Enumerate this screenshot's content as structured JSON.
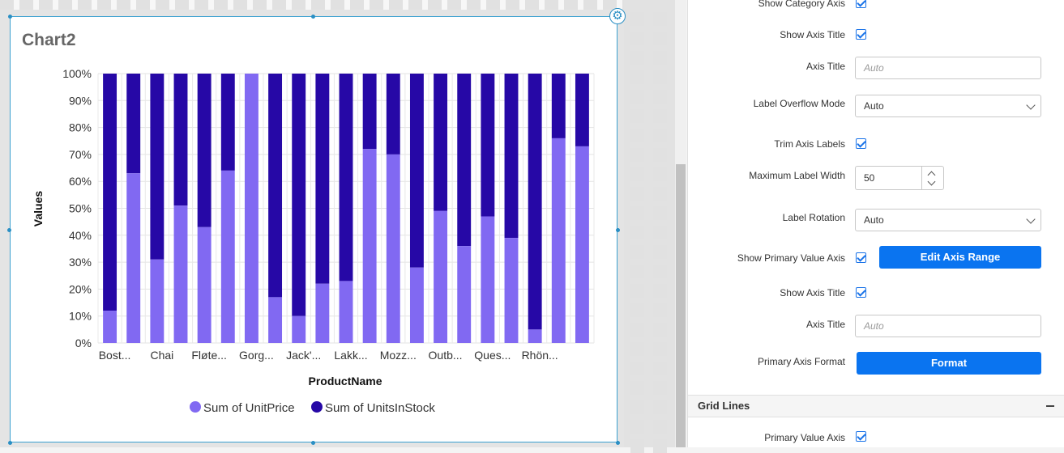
{
  "chart": {
    "title": "Chart2",
    "ylabel": "Values",
    "xlabel": "ProductName",
    "yticks": [
      "100%",
      "90%",
      "80%",
      "70%",
      "60%",
      "50%",
      "40%",
      "30%",
      "20%",
      "10%",
      "0%"
    ],
    "xticks": [
      "Bost...",
      "Chai",
      "Fløte...",
      "Gorg...",
      "Jack'...",
      "Lakk...",
      "Mozz...",
      "Outb...",
      "Ques...",
      "Rhön..."
    ],
    "legend": [
      "Sum of UnitPrice",
      "Sum of UnitsInStock"
    ],
    "colors": {
      "unitprice": "#8169f2",
      "unitsinstock": "#2608a6"
    }
  },
  "chart_data": {
    "type": "bar",
    "stacked": "percent",
    "categories": [
      "Bost...",
      "",
      "Chai",
      "",
      "Fløte...",
      "",
      "Gorg...",
      "",
      "Jack'...",
      "",
      "Lakk...",
      "",
      "Mozz...",
      "",
      "Outb...",
      "",
      "Ques...",
      "",
      "Rhön...",
      "",
      ""
    ],
    "series": [
      {
        "name": "Sum of UnitPrice",
        "values": [
          12,
          63,
          31,
          51,
          43,
          64,
          100,
          17,
          10,
          22,
          23,
          72,
          70,
          28,
          49,
          36,
          47,
          39,
          5,
          76,
          73
        ]
      },
      {
        "name": "Sum of UnitsInStock",
        "values": [
          88,
          37,
          69,
          49,
          57,
          36,
          0,
          83,
          90,
          78,
          77,
          28,
          30,
          72,
          51,
          64,
          53,
          61,
          95,
          24,
          27
        ]
      }
    ],
    "xlabel": "ProductName",
    "ylabel": "Values",
    "ylim": [
      0,
      100
    ],
    "grid": true,
    "legend": "bottom"
  },
  "panel": {
    "show_category_axis": "Show Category Axis",
    "show_axis_title_1": "Show Axis Title",
    "axis_title_1": "Axis Title",
    "axis_title_placeholder_1": "Auto",
    "label_overflow_mode": "Label Overflow Mode",
    "label_overflow_value": "Auto",
    "trim_axis_labels": "Trim Axis Labels",
    "max_label_width": "Maximum Label Width",
    "max_label_width_value": "50",
    "label_rotation": "Label Rotation",
    "label_rotation_value": "Auto",
    "show_primary_value_axis": "Show Primary Value Axis",
    "edit_axis_range": "Edit Axis Range",
    "show_axis_title_2": "Show Axis Title",
    "axis_title_2": "Axis Title",
    "axis_title_placeholder_2": "Auto",
    "primary_axis_format": "Primary Axis Format",
    "format_button": "Format",
    "grid_lines_section": "Grid Lines",
    "primary_value_axis": "Primary Value Axis"
  }
}
